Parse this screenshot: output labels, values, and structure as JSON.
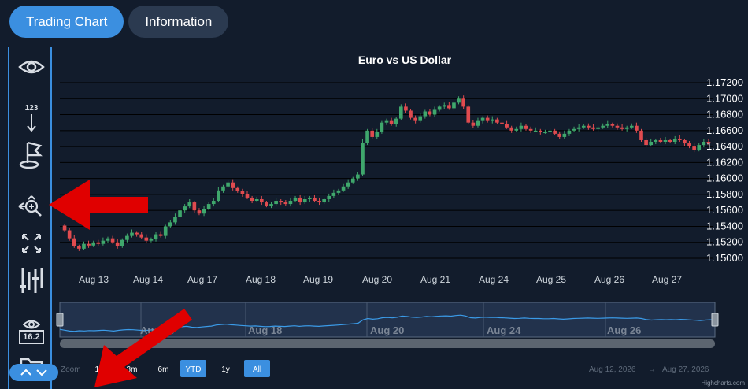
{
  "tabs": [
    {
      "label": "Trading Chart",
      "active": true
    },
    {
      "label": "Information",
      "active": false
    }
  ],
  "toolbar": {
    "items": [
      {
        "name": "eye-icon"
      },
      {
        "name": "label-123-icon",
        "text": "123"
      },
      {
        "name": "flag-icon"
      },
      {
        "name": "zoom-pan-icon"
      },
      {
        "name": "fullscreen-icon"
      },
      {
        "name": "indicators-icon"
      },
      {
        "name": "eye-value-icon",
        "text": "16.2"
      },
      {
        "name": "folder-icon"
      }
    ]
  },
  "chart_data": {
    "type": "candlestick",
    "title": "Euro vs US Dollar",
    "ylim": [
      1.15,
      1.172
    ],
    "y_ticks": [
      "1.15000",
      "1.15200",
      "1.15400",
      "1.15600",
      "1.15800",
      "1.16000",
      "1.16200",
      "1.16400",
      "1.16600",
      "1.16800",
      "1.17000",
      "1.17200"
    ],
    "x_ticks": [
      "Aug 13",
      "Aug 14",
      "Aug 17",
      "Aug 18",
      "Aug 19",
      "Aug 20",
      "Aug 21",
      "Aug 24",
      "Aug 25",
      "Aug 26",
      "Aug 27"
    ],
    "navigator_labels": [
      "Aug 16",
      "Aug 18",
      "Aug 20",
      "Aug 24",
      "Aug 26"
    ],
    "close_series": [
      1.1535,
      1.1525,
      1.1515,
      1.1512,
      1.1518,
      1.1516,
      1.152,
      1.1518,
      1.1522,
      1.1525,
      1.152,
      1.1515,
      1.1523,
      1.1528,
      1.1532,
      1.153,
      1.1526,
      1.1522,
      1.1524,
      1.153,
      1.1528,
      1.154,
      1.1545,
      1.1552,
      1.156,
      1.1565,
      1.157,
      1.156,
      1.1556,
      1.1562,
      1.1568,
      1.1572,
      1.1585,
      1.159,
      1.1595,
      1.1588,
      1.1584,
      1.158,
      1.1576,
      1.1572,
      1.1574,
      1.157,
      1.1566,
      1.1568,
      1.1572,
      1.157,
      1.1568,
      1.1572,
      1.1576,
      1.157,
      1.1574,
      1.1576,
      1.1572,
      1.157,
      1.1574,
      1.1578,
      1.1582,
      1.1585,
      1.159,
      1.1595,
      1.16,
      1.1605,
      1.1645,
      1.166,
      1.1652,
      1.1658,
      1.167,
      1.1672,
      1.1668,
      1.1675,
      1.169,
      1.1685,
      1.1676,
      1.1672,
      1.1678,
      1.1684,
      1.168,
      1.1686,
      1.169,
      1.1692,
      1.1688,
      1.1695,
      1.17,
      1.169,
      1.167,
      1.1666,
      1.1672,
      1.1676,
      1.1672,
      1.1674,
      1.167,
      1.1668,
      1.1664,
      1.166,
      1.1662,
      1.1666,
      1.1662,
      1.166,
      1.166,
      1.1658,
      1.1658,
      1.166,
      1.1656,
      1.1652,
      1.1656,
      1.166,
      1.1662,
      1.1664,
      1.1666,
      1.1664,
      1.1662,
      1.1664,
      1.1666,
      1.1668,
      1.1666,
      1.1664,
      1.1662,
      1.1664,
      1.1666,
      1.166,
      1.1648,
      1.1642,
      1.1646,
      1.1648,
      1.1646,
      1.1648,
      1.1646,
      1.165,
      1.1648,
      1.1644,
      1.164,
      1.1636,
      1.1642,
      1.1646,
      1.1644
    ],
    "navigator_range": [
      "Aug 12, 2026",
      "Aug 27, 2026"
    ]
  },
  "range_selector": {
    "zoom_label": "Zoom",
    "buttons": [
      {
        "label": "1m",
        "active": false
      },
      {
        "label": "3m",
        "active": false
      },
      {
        "label": "6m",
        "active": false
      },
      {
        "label": "YTD",
        "active": true
      },
      {
        "label": "1y",
        "active": false
      },
      {
        "label": "All",
        "active": true
      }
    ],
    "from": "Aug 12, 2026",
    "arrow": "→",
    "to": "Aug 27, 2026"
  },
  "credits": "Highcharts.com",
  "colors": {
    "up": "#3fa76c",
    "down": "#e04b4f",
    "accent": "#3b8fe0",
    "annotation_arrow": "#e00000"
  }
}
